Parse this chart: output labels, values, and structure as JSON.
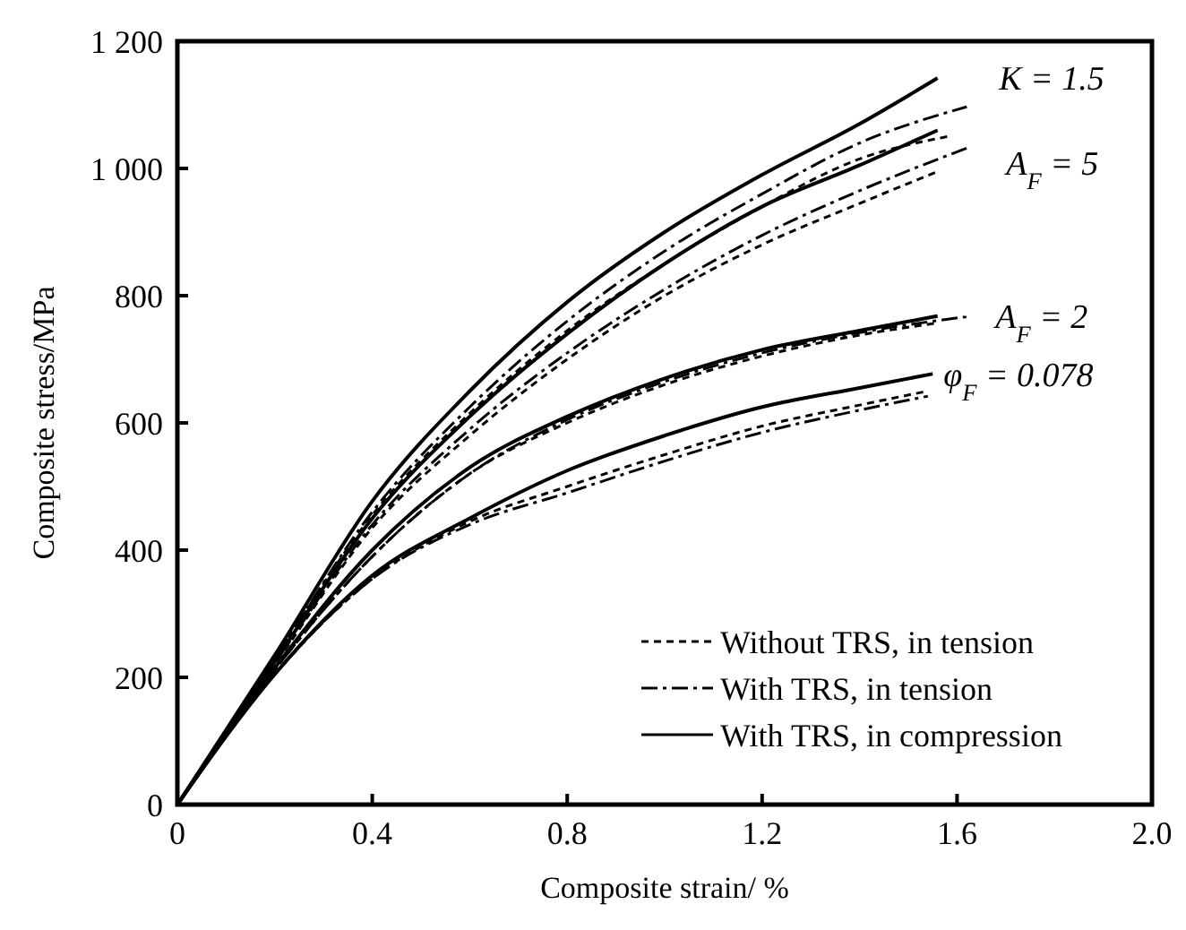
{
  "chart_data": {
    "type": "line",
    "xlabel": "Composite strain/ %",
    "ylabel": "Composite stress/MPa",
    "xlim": [
      0,
      2.0
    ],
    "ylim": [
      0,
      1200
    ],
    "xticks": [
      0,
      0.4,
      0.8,
      1.2,
      1.6,
      {
        "value": 2.0,
        "label": "2.0"
      }
    ],
    "yticks": [
      0,
      200,
      400,
      600,
      800,
      {
        "value": 1000,
        "label": "1 000"
      },
      {
        "value": 1200,
        "label": "1 200"
      }
    ],
    "grid": false,
    "legend": "bottom right",
    "marker": "none",
    "series": [
      {
        "name": "Without TRS, in tension",
        "color": "#000000",
        "line_style": "dashed",
        "x": [
          0,
          0.2,
          0.4,
          0.6,
          0.8,
          1.0,
          1.2,
          1.4,
          1.58
        ],
        "values": [
          0,
          230,
          455,
          615,
          745,
          850,
          940,
          1015,
          1050
        ]
      },
      {
        "name": "With TRS, in tension",
        "color": "#000000",
        "line_style": "dashdot",
        "x": [
          0,
          0.2,
          0.4,
          0.6,
          0.8,
          1.0,
          1.2,
          1.4,
          1.62
        ],
        "values": [
          0,
          230,
          460,
          625,
          760,
          870,
          960,
          1040,
          1097
        ]
      },
      {
        "name": "With TRS, in compression",
        "color": "#000000",
        "line_style": "solid",
        "x": [
          0,
          0.2,
          0.4,
          0.6,
          0.8,
          1.0,
          1.2,
          1.4,
          1.56
        ],
        "values": [
          0,
          235,
          477,
          650,
          790,
          900,
          990,
          1070,
          1142
        ]
      },
      {
        "color": "#000000",
        "line_style": "dashed",
        "x": [
          0,
          0.2,
          0.4,
          0.6,
          0.8,
          1.0,
          1.2,
          1.4,
          1.56
        ],
        "values": [
          0,
          220,
          435,
          580,
          700,
          800,
          880,
          945,
          995
        ]
      },
      {
        "color": "#000000",
        "line_style": "dashdot",
        "x": [
          0,
          0.2,
          0.4,
          0.6,
          0.8,
          1.0,
          1.2,
          1.4,
          1.62
        ],
        "values": [
          0,
          222,
          440,
          590,
          710,
          810,
          895,
          965,
          1032
        ]
      },
      {
        "color": "#000000",
        "line_style": "solid",
        "x": [
          0,
          0.2,
          0.4,
          0.6,
          0.8,
          1.0,
          1.2,
          1.4,
          1.56
        ],
        "values": [
          0,
          225,
          450,
          610,
          740,
          850,
          940,
          1005,
          1060
        ]
      },
      {
        "color": "#000000",
        "line_style": "dashed",
        "x": [
          0,
          0.2,
          0.4,
          0.6,
          0.8,
          1.0,
          1.2,
          1.4,
          1.56
        ],
        "values": [
          0,
          212,
          390,
          520,
          600,
          660,
          705,
          738,
          757
        ]
      },
      {
        "color": "#000000",
        "line_style": "dashdot",
        "x": [
          0,
          0.2,
          0.4,
          0.6,
          0.8,
          1.0,
          1.2,
          1.4,
          1.62
        ],
        "values": [
          0,
          212,
          390,
          520,
          605,
          665,
          710,
          742,
          767
        ]
      },
      {
        "color": "#000000",
        "line_style": "solid",
        "x": [
          0,
          0.2,
          0.4,
          0.6,
          0.8,
          1.0,
          1.2,
          1.4,
          1.56
        ],
        "values": [
          0,
          215,
          400,
          530,
          610,
          670,
          715,
          745,
          768
        ]
      },
      {
        "color": "#000000",
        "line_style": "dashed",
        "x": [
          0,
          0.2,
          0.4,
          0.6,
          0.8,
          1.0,
          1.2,
          1.4,
          1.54
        ],
        "values": [
          0,
          205,
          355,
          445,
          500,
          550,
          595,
          628,
          650
        ]
      },
      {
        "color": "#000000",
        "line_style": "dashdot",
        "x": [
          0,
          0.2,
          0.4,
          0.6,
          0.8,
          1.0,
          1.2,
          1.4,
          1.54
        ],
        "values": [
          0,
          205,
          355,
          440,
          490,
          540,
          585,
          620,
          642
        ]
      },
      {
        "color": "#000000",
        "line_style": "solid",
        "x": [
          0,
          0.2,
          0.4,
          0.6,
          0.8,
          1.0,
          1.2,
          1.4,
          1.55
        ],
        "values": [
          0,
          205,
          360,
          450,
          525,
          580,
          625,
          655,
          677
        ]
      }
    ],
    "annotations": [
      "K = 1.5",
      "A$_{F}$ = 5",
      "A$_{F}$ = 2",
      "φ$_{F}$ = 0.078"
    ]
  }
}
